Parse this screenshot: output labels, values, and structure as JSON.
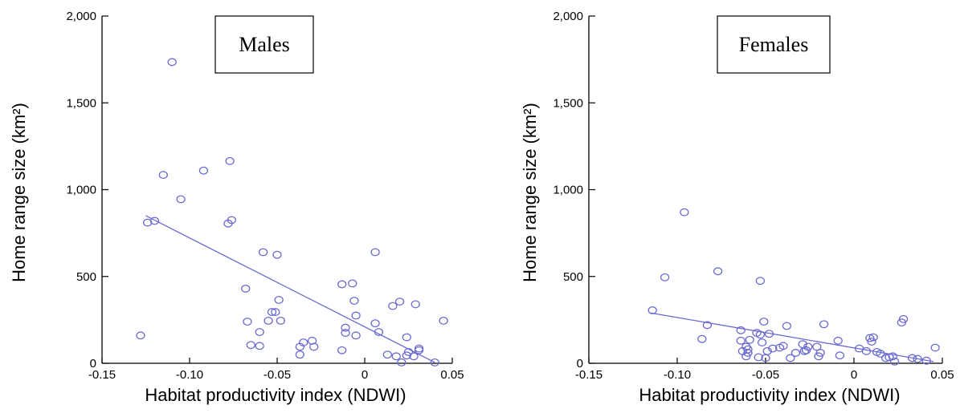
{
  "colors": {
    "marker": "#6a6ad0",
    "axis": "#000000"
  },
  "chart_data": [
    {
      "type": "scatter",
      "title": "Males",
      "xlabel": "Habitat productivity index (NDWI)",
      "ylabel": "Home range size (km²)",
      "xlim": [
        -0.15,
        0.05
      ],
      "ylim": [
        0,
        2000
      ],
      "x_ticks": [
        -0.15,
        -0.1,
        -0.05,
        0,
        0.05
      ],
      "x_tick_labels": [
        "-0.15",
        "-0.10",
        "-0.05",
        "0",
        "0.05"
      ],
      "y_ticks": [
        0,
        500,
        1000,
        1500,
        2000
      ],
      "y_tick_labels": [
        "0",
        "500",
        "1,000",
        "1,500",
        "2,000"
      ],
      "grid": false,
      "trendline": {
        "x": [
          -0.125,
          0.04
        ],
        "y": [
          850,
          5
        ]
      },
      "points": [
        [
          -0.128,
          160
        ],
        [
          -0.124,
          810
        ],
        [
          -0.12,
          820
        ],
        [
          -0.115,
          1085
        ],
        [
          -0.11,
          1735
        ],
        [
          -0.105,
          945
        ],
        [
          -0.092,
          1110
        ],
        [
          -0.078,
          805
        ],
        [
          -0.077,
          1165
        ],
        [
          -0.076,
          825
        ],
        [
          -0.068,
          430
        ],
        [
          -0.067,
          240
        ],
        [
          -0.065,
          105
        ],
        [
          -0.06,
          100
        ],
        [
          -0.06,
          180
        ],
        [
          -0.058,
          640
        ],
        [
          -0.055,
          245
        ],
        [
          -0.053,
          295
        ],
        [
          -0.051,
          295
        ],
        [
          -0.05,
          625
        ],
        [
          -0.049,
          365
        ],
        [
          -0.048,
          245
        ],
        [
          -0.037,
          50
        ],
        [
          -0.037,
          95
        ],
        [
          -0.035,
          120
        ],
        [
          -0.03,
          130
        ],
        [
          -0.029,
          95
        ],
        [
          -0.013,
          455
        ],
        [
          -0.013,
          75
        ],
        [
          -0.011,
          175
        ],
        [
          -0.011,
          205
        ],
        [
          -0.007,
          460
        ],
        [
          -0.006,
          360
        ],
        [
          -0.005,
          275
        ],
        [
          -0.005,
          160
        ],
        [
          0.006,
          640
        ],
        [
          0.006,
          230
        ],
        [
          0.008,
          180
        ],
        [
          0.013,
          50
        ],
        [
          0.016,
          330
        ],
        [
          0.018,
          40
        ],
        [
          0.02,
          355
        ],
        [
          0.021,
          5
        ],
        [
          0.024,
          45
        ],
        [
          0.024,
          150
        ],
        [
          0.025,
          65
        ],
        [
          0.028,
          40
        ],
        [
          0.029,
          340
        ],
        [
          0.031,
          75
        ],
        [
          0.031,
          85
        ],
        [
          0.04,
          5
        ],
        [
          0.045,
          245
        ]
      ]
    },
    {
      "type": "scatter",
      "title": "Females",
      "xlabel": "Habitat productivity index (NDWI)",
      "ylabel": "Home range size (km²)",
      "xlim": [
        -0.15,
        0.05
      ],
      "ylim": [
        0,
        2000
      ],
      "x_ticks": [
        -0.15,
        -0.1,
        -0.05,
        0,
        0.05
      ],
      "x_tick_labels": [
        "-0.15",
        "-0.10",
        "-0.05",
        "0",
        "0.05"
      ],
      "y_ticks": [
        0,
        500,
        1000,
        1500,
        2000
      ],
      "y_tick_labels": [
        "0",
        "500",
        "1,000",
        "1,500",
        "2,000"
      ],
      "grid": false,
      "trendline": {
        "x": [
          -0.115,
          0.045
        ],
        "y": [
          290,
          10
        ]
      },
      "points": [
        [
          -0.114,
          305
        ],
        [
          -0.107,
          495
        ],
        [
          -0.096,
          870
        ],
        [
          -0.086,
          140
        ],
        [
          -0.083,
          220
        ],
        [
          -0.077,
          530
        ],
        [
          -0.064,
          190
        ],
        [
          -0.064,
          130
        ],
        [
          -0.063,
          70
        ],
        [
          -0.061,
          95
        ],
        [
          -0.061,
          40
        ],
        [
          -0.06,
          60
        ],
        [
          -0.06,
          80
        ],
        [
          -0.059,
          135
        ],
        [
          -0.055,
          175
        ],
        [
          -0.054,
          35
        ],
        [
          -0.053,
          475
        ],
        [
          -0.053,
          165
        ],
        [
          -0.052,
          120
        ],
        [
          -0.051,
          240
        ],
        [
          -0.05,
          30
        ],
        [
          -0.049,
          70
        ],
        [
          -0.048,
          170
        ],
        [
          -0.046,
          85
        ],
        [
          -0.042,
          90
        ],
        [
          -0.04,
          100
        ],
        [
          -0.038,
          215
        ],
        [
          -0.036,
          30
        ],
        [
          -0.033,
          60
        ],
        [
          -0.029,
          110
        ],
        [
          -0.028,
          70
        ],
        [
          -0.027,
          75
        ],
        [
          -0.026,
          95
        ],
        [
          -0.021,
          95
        ],
        [
          -0.02,
          40
        ],
        [
          -0.019,
          60
        ],
        [
          -0.017,
          225
        ],
        [
          -0.009,
          130
        ],
        [
          -0.008,
          45
        ],
        [
          0.003,
          85
        ],
        [
          0.007,
          70
        ],
        [
          0.009,
          145
        ],
        [
          0.01,
          125
        ],
        [
          0.011,
          150
        ],
        [
          0.013,
          65
        ],
        [
          0.015,
          55
        ],
        [
          0.018,
          30
        ],
        [
          0.02,
          35
        ],
        [
          0.022,
          40
        ],
        [
          0.023,
          10
        ],
        [
          0.027,
          235
        ],
        [
          0.028,
          255
        ],
        [
          0.033,
          30
        ],
        [
          0.036,
          25
        ],
        [
          0.041,
          15
        ],
        [
          0.046,
          90
        ]
      ]
    }
  ]
}
